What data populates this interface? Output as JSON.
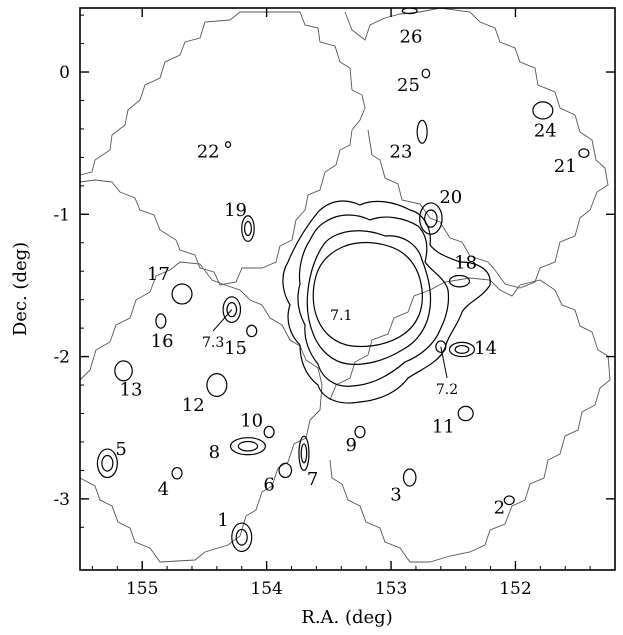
{
  "chart_data": {
    "type": "contour",
    "xlabel": "R.A. (deg)",
    "ylabel": "Dec. (deg)",
    "xlim": [
      155.5,
      151.2
    ],
    "ylim": [
      -3.5,
      0.45
    ],
    "xticks": [
      155,
      154,
      153,
      152
    ],
    "yticks": [
      0,
      -1,
      -2,
      -3
    ],
    "grid": false,
    "legend": "none",
    "colors": {
      "contour": "#000000",
      "footprint": "#555555"
    },
    "peaks": [
      {
        "label": "1",
        "ra": 154.2,
        "dec": -3.27,
        "rx": 0.08,
        "ry": 0.1,
        "lx": 154.35,
        "ly": -3.15
      },
      {
        "label": "2",
        "ra": 152.05,
        "dec": -3.01,
        "rx": 0.04,
        "ry": 0.03,
        "lx": 152.13,
        "ly": -3.06
      },
      {
        "label": "3",
        "ra": 152.85,
        "dec": -2.85,
        "rx": 0.05,
        "ry": 0.06,
        "lx": 152.96,
        "ly": -2.97
      },
      {
        "label": "4",
        "ra": 154.72,
        "dec": -2.82,
        "rx": 0.04,
        "ry": 0.04,
        "lx": 154.83,
        "ly": -2.93
      },
      {
        "label": "5",
        "ra": 155.28,
        "dec": -2.75,
        "rx": 0.08,
        "ry": 0.1,
        "lx": 155.17,
        "ly": -2.65
      },
      {
        "label": "6",
        "ra": 153.85,
        "dec": -2.8,
        "rx": 0.05,
        "ry": 0.05,
        "lx": 153.98,
        "ly": -2.9
      },
      {
        "label": "7",
        "ra": 153.7,
        "dec": -2.68,
        "rx": 0.04,
        "ry": 0.12,
        "lx": 153.63,
        "ly": -2.86
      },
      {
        "label": "8",
        "ra": 154.15,
        "dec": -2.63,
        "rx": 0.14,
        "ry": 0.06,
        "lx": 154.42,
        "ly": -2.67
      },
      {
        "label": "9",
        "ra": 153.25,
        "dec": -2.53,
        "rx": 0.04,
        "ry": 0.04,
        "lx": 153.32,
        "ly": -2.62
      },
      {
        "label": "10",
        "ra": 153.98,
        "dec": -2.53,
        "rx": 0.04,
        "ry": 0.04,
        "lx": 154.12,
        "ly": -2.45
      },
      {
        "label": "11",
        "ra": 152.4,
        "dec": -2.4,
        "rx": 0.06,
        "ry": 0.05,
        "lx": 152.58,
        "ly": -2.49
      },
      {
        "label": "12",
        "ra": 154.4,
        "dec": -2.2,
        "rx": 0.08,
        "ry": 0.08,
        "lx": 154.59,
        "ly": -2.34
      },
      {
        "label": "13",
        "ra": 155.15,
        "dec": -2.1,
        "rx": 0.07,
        "ry": 0.07,
        "lx": 155.09,
        "ly": -2.23
      },
      {
        "label": "14",
        "ra": 152.43,
        "dec": -1.95,
        "rx": 0.1,
        "ry": 0.05,
        "lx": 152.24,
        "ly": -1.94
      },
      {
        "label": "15",
        "ra": 154.12,
        "dec": -1.82,
        "rx": 0.04,
        "ry": 0.04,
        "lx": 154.25,
        "ly": -1.94
      },
      {
        "label": "16",
        "ra": 154.85,
        "dec": -1.75,
        "rx": 0.04,
        "ry": 0.05,
        "lx": 154.84,
        "ly": -1.89
      },
      {
        "label": "17",
        "ra": 154.68,
        "dec": -1.56,
        "rx": 0.08,
        "ry": 0.07,
        "lx": 154.87,
        "ly": -1.42
      },
      {
        "label": "18",
        "ra": 152.45,
        "dec": -1.47,
        "rx": 0.08,
        "ry": 0.04,
        "lx": 152.4,
        "ly": -1.34
      },
      {
        "label": "19",
        "ra": 154.15,
        "dec": -1.1,
        "rx": 0.05,
        "ry": 0.09,
        "lx": 154.25,
        "ly": -0.97
      },
      {
        "label": "20",
        "ra": 152.68,
        "dec": -1.03,
        "rx": 0.09,
        "ry": 0.11,
        "lx": 152.52,
        "ly": -0.88
      },
      {
        "label": "21",
        "ra": 151.45,
        "dec": -0.57,
        "rx": 0.04,
        "ry": 0.03,
        "lx": 151.6,
        "ly": -0.66
      },
      {
        "label": "22",
        "ra": 154.31,
        "dec": -0.51,
        "rx": 0.02,
        "ry": 0.02,
        "lx": 154.47,
        "ly": -0.56
      },
      {
        "label": "23",
        "ra": 152.75,
        "dec": -0.42,
        "rx": 0.04,
        "ry": 0.08,
        "lx": 152.92,
        "ly": -0.56
      },
      {
        "label": "24",
        "ra": 151.78,
        "dec": -0.27,
        "rx": 0.08,
        "ry": 0.06,
        "lx": 151.76,
        "ly": -0.41
      },
      {
        "label": "25",
        "ra": 152.72,
        "dec": -0.01,
        "rx": 0.03,
        "ry": 0.03,
        "lx": 152.86,
        "ly": -0.09
      },
      {
        "label": "26",
        "ra": 152.85,
        "dec": 0.43,
        "rx": 0.06,
        "ry": 0.02,
        "lx": 152.84,
        "ly": 0.25
      },
      {
        "label": "7.1",
        "ra": 153.35,
        "dec": -1.62,
        "rx": 0.72,
        "ry": 0.52,
        "lx": 153.4,
        "ly": -1.7
      },
      {
        "label": "7.2",
        "ra": 152.6,
        "dec": -1.93,
        "rx": 0.04,
        "ry": 0.04,
        "lx": 152.55,
        "ly": -2.22
      },
      {
        "label": "7.3",
        "ra": 154.28,
        "dec": -1.67,
        "rx": 0.07,
        "ry": 0.09,
        "lx": 154.43,
        "ly": -1.89
      }
    ]
  }
}
